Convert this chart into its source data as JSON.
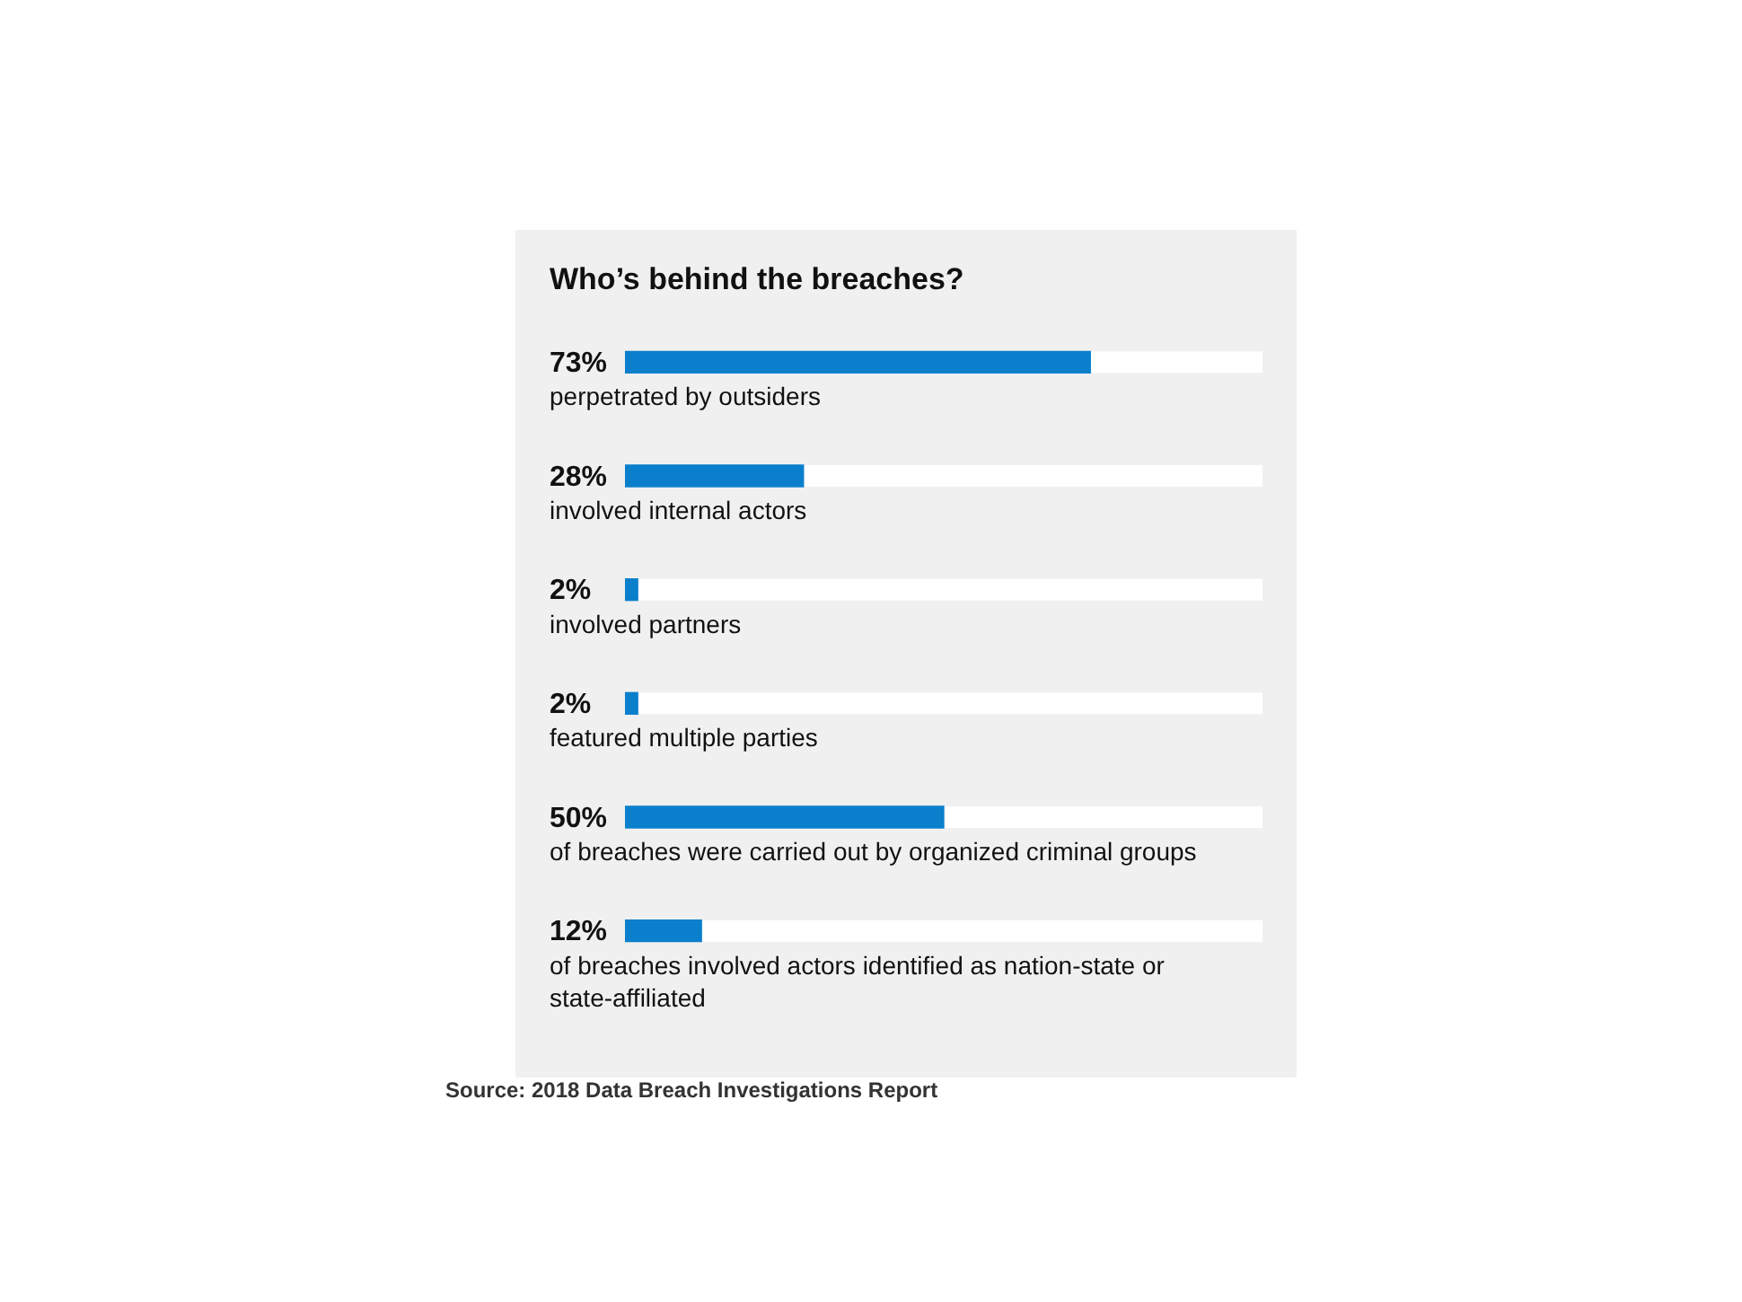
{
  "chart_data": {
    "type": "bar",
    "orientation": "horizontal",
    "title": "Who’s behind the breaches?",
    "categories": [
      "perpetrated by outsiders",
      "involved internal actors",
      "involved partners",
      "featured multiple parties",
      "of breaches were carried out by organized criminal groups",
      "of breaches involved actors identified as nation-state or state-affiliated"
    ],
    "values": [
      73,
      28,
      2,
      2,
      50,
      12
    ],
    "value_labels": [
      "73%",
      "28%",
      "2%",
      "2%",
      "50%",
      "12%"
    ],
    "color": "#0a7fcc",
    "xlim": [
      0,
      100
    ],
    "tick_labels": false,
    "grid": false,
    "legend": false,
    "annotations": [
      "Source: 2018 Data Breach Investigations Report"
    ]
  }
}
